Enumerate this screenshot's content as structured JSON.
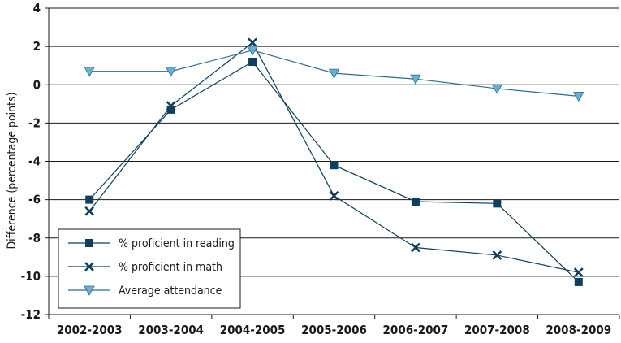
{
  "chart_data": {
    "type": "line",
    "title": "",
    "xlabel": "",
    "ylabel": "Difference (percentage points)",
    "ylim": [
      -12,
      4
    ],
    "ytick_step": 2,
    "grid": "horizontal",
    "legend_placement": "bottom-left",
    "categories": [
      "2002-2003",
      "2003-2004",
      "2004-2005",
      "2005-2006",
      "2006-2007",
      "2007-2008",
      "2008-2009"
    ],
    "series": [
      {
        "name": "% proficient in reading",
        "marker": "square",
        "color": "#0f3e5e",
        "values": [
          -6.0,
          -1.3,
          1.2,
          -4.2,
          -6.1,
          -6.2,
          -10.3
        ]
      },
      {
        "name": "% proficient in math",
        "marker": "x",
        "color": "#0f3e5e",
        "values": [
          -6.6,
          -1.1,
          2.2,
          -5.8,
          -8.5,
          -8.9,
          -9.8
        ]
      },
      {
        "name": "Average attendance",
        "marker": "triangle-down",
        "color": "#6aaed0",
        "values": [
          0.7,
          0.7,
          1.8,
          0.6,
          0.3,
          -0.2,
          -0.6
        ]
      }
    ]
  }
}
